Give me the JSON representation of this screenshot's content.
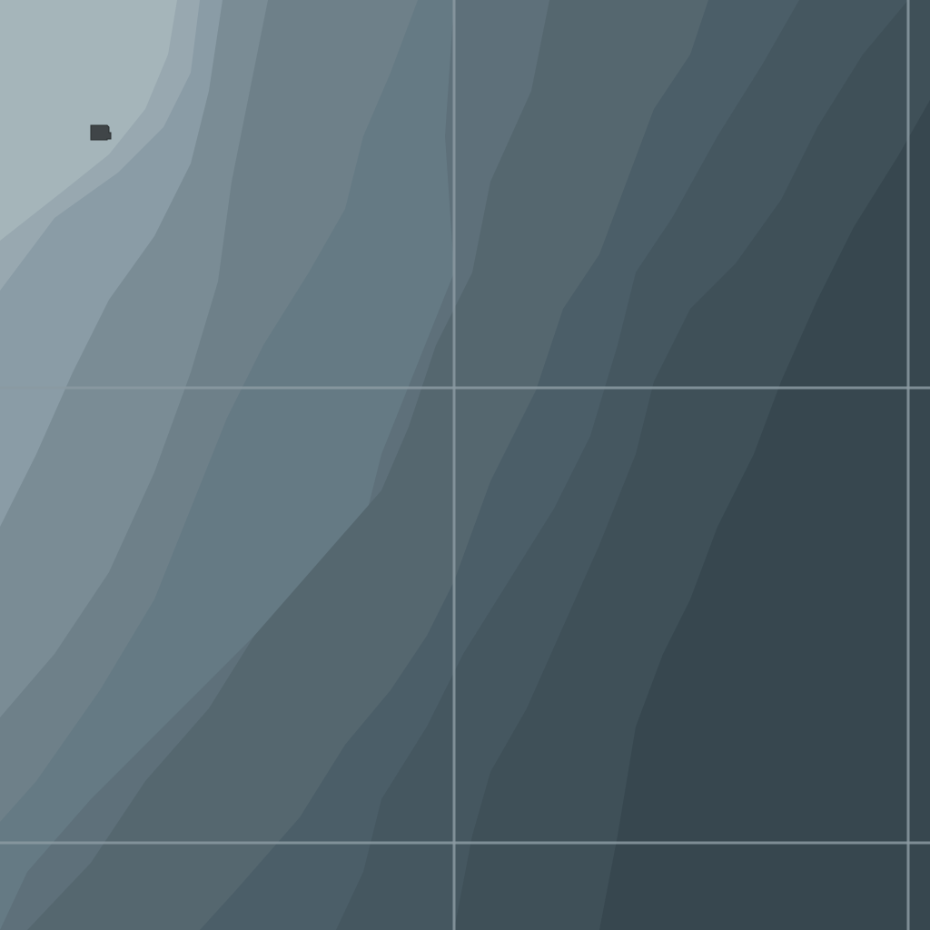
{
  "map": {
    "style": "terrain-hillshade-contours",
    "band_colors": [
      "#a5b5ba",
      "#98a8b0",
      "#8a9ca6",
      "#7a8c95",
      "#6e8089",
      "#657a84",
      "#5e707a",
      "#55676f",
      "#4b5e68",
      "#455760",
      "#3f5058",
      "#37474f"
    ],
    "gridline_color": "#8b9aa2",
    "marker": {
      "icon": "sd-card-icon",
      "color": "#404548"
    }
  }
}
